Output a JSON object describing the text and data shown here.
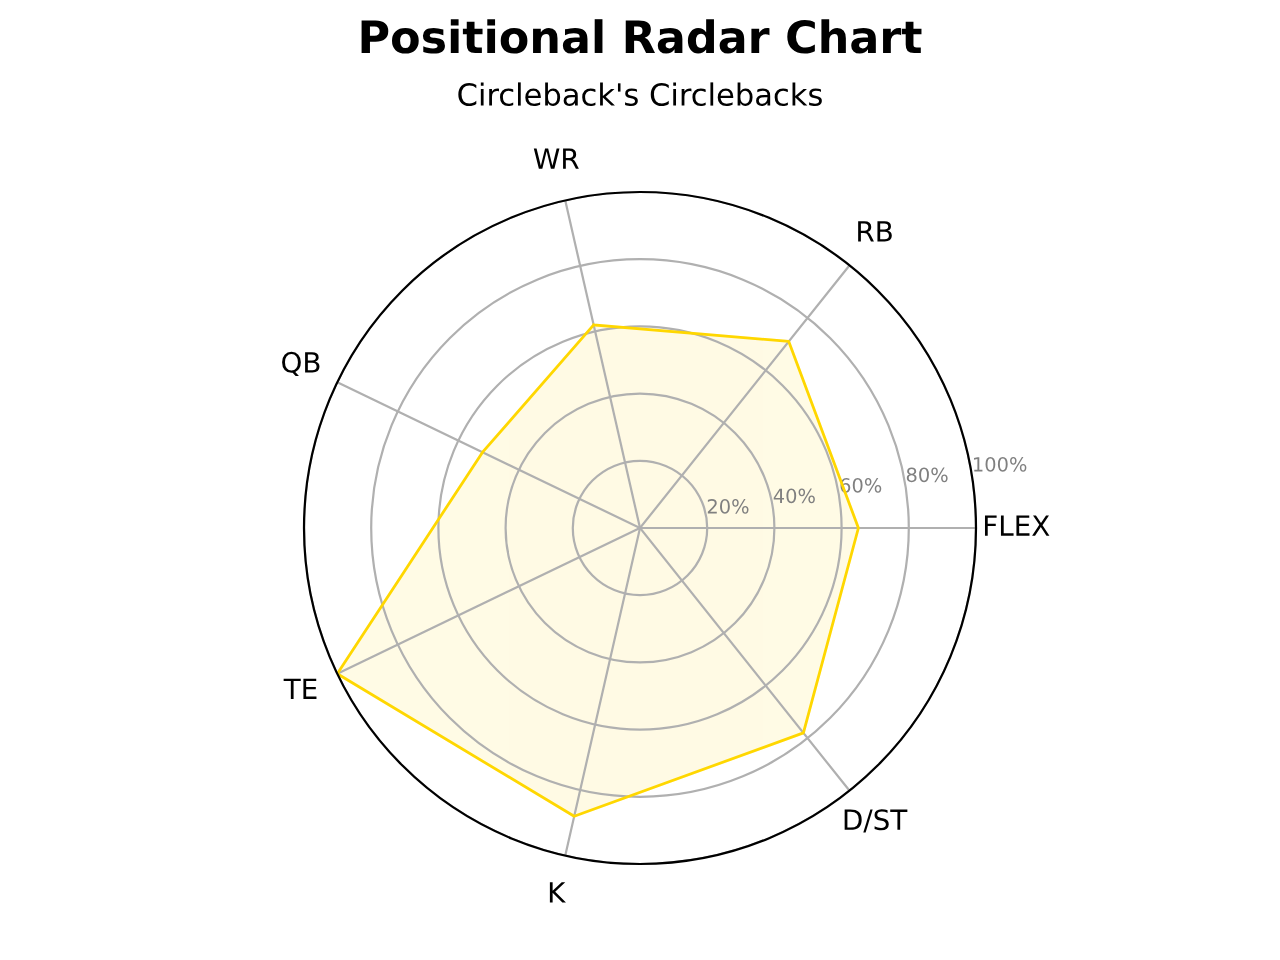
{
  "chart_data": {
    "type": "radar",
    "title": "Positional Radar Chart",
    "subtitle": "Circleback's Circlebacks",
    "categories": [
      "WR",
      "RB",
      "FLEX",
      "D/ST",
      "K",
      "TE",
      "QB"
    ],
    "series": [
      {
        "color": "#ffd700",
        "values": [
          62,
          71,
          65,
          78,
          88,
          100,
          52
        ]
      }
    ],
    "ylim": [
      0,
      100
    ],
    "yticks": [
      {
        "value": 20,
        "label": "20%"
      },
      {
        "value": 40,
        "label": "40%"
      },
      {
        "value": 60,
        "label": "60%"
      },
      {
        "value": 80,
        "label": "80%"
      },
      {
        "value": 100,
        "label": "100%"
      }
    ],
    "grid": true
  }
}
